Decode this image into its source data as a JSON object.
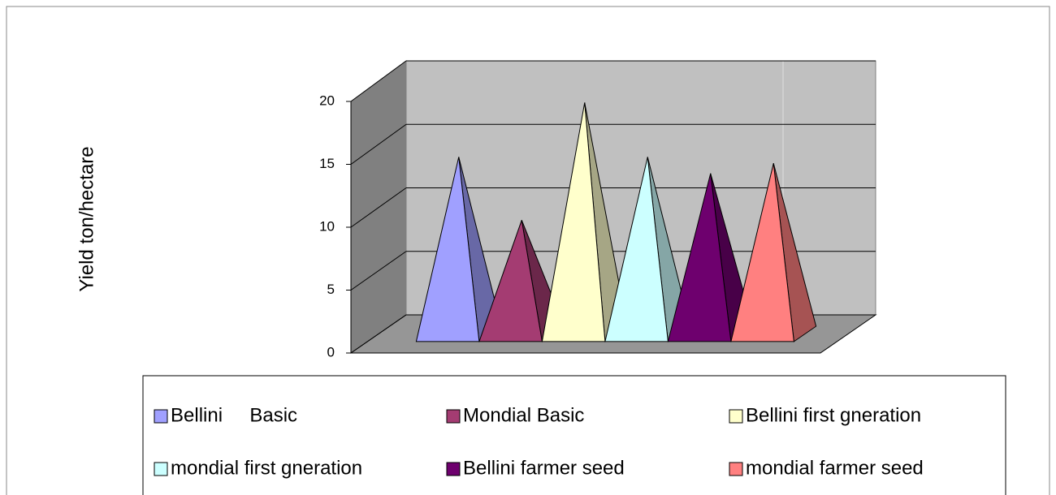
{
  "chart_data": {
    "type": "pyramid",
    "ylabel": "Yield  ton/hectare",
    "ylim": [
      0,
      20
    ],
    "yticks": [
      0,
      5,
      10,
      15,
      20
    ],
    "grid": true,
    "series": [
      {
        "name": "Bellini     Basic",
        "color": "#a0a0ff",
        "values": [
          14
        ]
      },
      {
        "name": "Mondial Basic",
        "color": "#a43c72",
        "values": [
          9
        ]
      },
      {
        "name": "Bellini first gneration",
        "color": "#ffffcc",
        "values": [
          18.3
        ]
      },
      {
        "name": "mondial first gneration",
        "color": "#ccffff",
        "values": [
          14
        ]
      },
      {
        "name": "Bellini farmer seed",
        "color": "#6e006e",
        "values": [
          12.7
        ]
      },
      {
        "name": "mondial farmer seed",
        "color": "#ff8080",
        "values": [
          13.5
        ]
      }
    ]
  }
}
